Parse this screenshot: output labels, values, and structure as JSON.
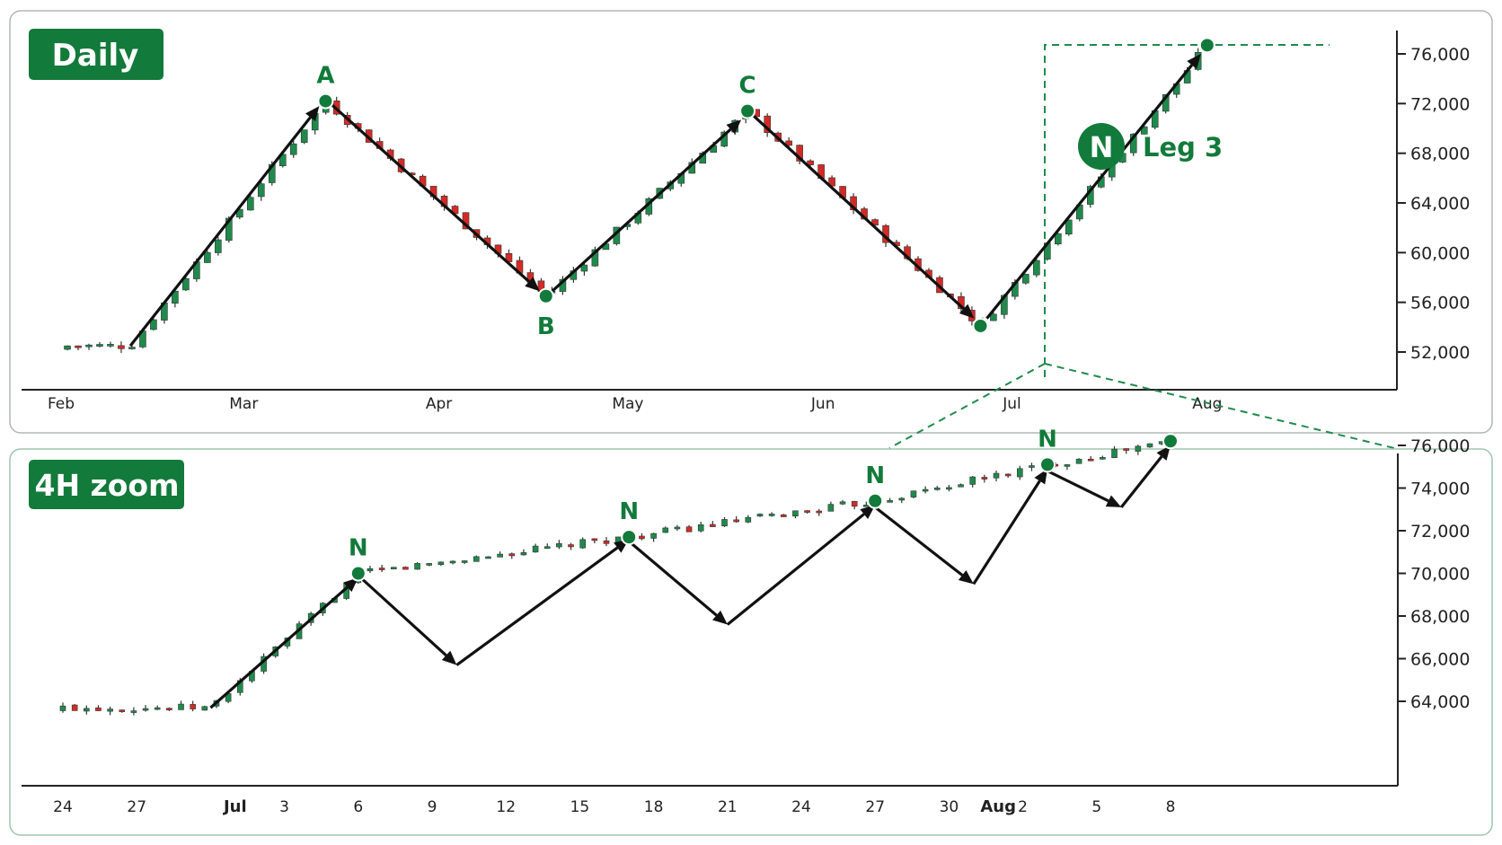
{
  "colors": {
    "accent": "#127a3a",
    "bull": "#1f8a4c",
    "bear": "#d42a26",
    "border": "#9fc6ad",
    "axis": "#222222",
    "arrow": "#111111"
  },
  "chart_data": [
    {
      "type": "candlestick",
      "badge": "Daily",
      "title": "",
      "xlabel": "",
      "ylabel": "",
      "x_ticks": [
        "Feb",
        "Mar",
        "Apr",
        "May",
        "Jun",
        "Jul",
        "Aug"
      ],
      "y_ticks": [
        "52,000",
        "56,000",
        "60,000",
        "64,000",
        "68,000",
        "72,000",
        "76,000"
      ],
      "y_tick_values": [
        52000,
        56000,
        60000,
        64000,
        68000,
        72000,
        76000
      ],
      "ylim": [
        51000,
        77500
      ],
      "grid": false,
      "pivots": [
        {
          "label": "A",
          "date": "2024-03-14",
          "value": 72200
        },
        {
          "label": "B",
          "date": "2024-04-18",
          "value": 56500
        },
        {
          "label": "C",
          "date": "2024-05-20",
          "value": 71400
        },
        {
          "label": "",
          "date": "2024-06-26",
          "value": 54100
        },
        {
          "label": "",
          "date": "2024-08-01",
          "value": 76700
        }
      ],
      "annotation": {
        "badge": "N",
        "text": "Leg 3"
      },
      "trend_arrows": [
        {
          "from": [
            "2024-02-12",
            52500
          ],
          "to": [
            "2024-03-13",
            71800
          ]
        },
        {
          "from": [
            "2024-03-15",
            71900
          ],
          "to": [
            "2024-04-17",
            56900
          ]
        },
        {
          "from": [
            "2024-04-19",
            56900
          ],
          "to": [
            "2024-05-19",
            70700
          ]
        },
        {
          "from": [
            "2024-05-21",
            71000
          ],
          "to": [
            "2024-06-25",
            54700
          ]
        },
        {
          "from": [
            "2024-06-27",
            54700
          ],
          "to": [
            "2024-07-31",
            76000
          ]
        }
      ]
    },
    {
      "type": "candlestick",
      "badge": "4H zoom",
      "title": "",
      "xlabel": "",
      "ylabel": "",
      "x_ticks": [
        "24",
        "27",
        "Jul",
        "3",
        "6",
        "9",
        "12",
        "15",
        "18",
        "21",
        "24",
        "27",
        "30",
        "Aug",
        "2",
        "5",
        "8"
      ],
      "x_ticks_bold": [
        "Jul",
        "Aug"
      ],
      "y_ticks": [
        "64,000",
        "66,000",
        "68,000",
        "70,000",
        "72,000",
        "74,000",
        "76,000"
      ],
      "y_tick_values": [
        64000,
        66000,
        68000,
        70000,
        72000,
        74000,
        76000
      ],
      "ylim": [
        62500,
        76800
      ],
      "grid": false,
      "pivots": [
        {
          "label": "N",
          "date": "2024-07-06",
          "value": 70000
        },
        {
          "label": "N",
          "date": "2024-07-17",
          "value": 71700
        },
        {
          "label": "N",
          "date": "2024-07-27",
          "value": 73400
        },
        {
          "label": "N",
          "date": "2024-08-03",
          "value": 75100
        },
        {
          "label": "",
          "date": "2024-08-08",
          "value": 76200
        }
      ],
      "trend_arrows": [
        {
          "from": [
            "2024-06-30",
            63700
          ],
          "to": [
            "2024-07-06",
            69800
          ]
        },
        {
          "from": [
            "2024-07-06",
            69900
          ],
          "to": [
            "2024-07-10",
            65700
          ]
        },
        {
          "from": [
            "2024-07-10",
            65700
          ],
          "to": [
            "2024-07-17",
            71600
          ]
        },
        {
          "from": [
            "2024-07-17",
            71500
          ],
          "to": [
            "2024-07-21",
            67600
          ]
        },
        {
          "from": [
            "2024-07-21",
            67600
          ],
          "to": [
            "2024-07-27",
            73200
          ]
        },
        {
          "from": [
            "2024-07-27",
            73100
          ],
          "to": [
            "2024-07-31",
            69500
          ]
        },
        {
          "from": [
            "2024-07-31",
            69500
          ],
          "to": [
            "2024-08-03",
            74900
          ]
        },
        {
          "from": [
            "2024-08-03",
            74800
          ],
          "to": [
            "2024-08-06",
            73100
          ]
        },
        {
          "from": [
            "2024-08-06",
            73100
          ],
          "to": [
            "2024-08-08",
            76000
          ]
        }
      ]
    }
  ]
}
